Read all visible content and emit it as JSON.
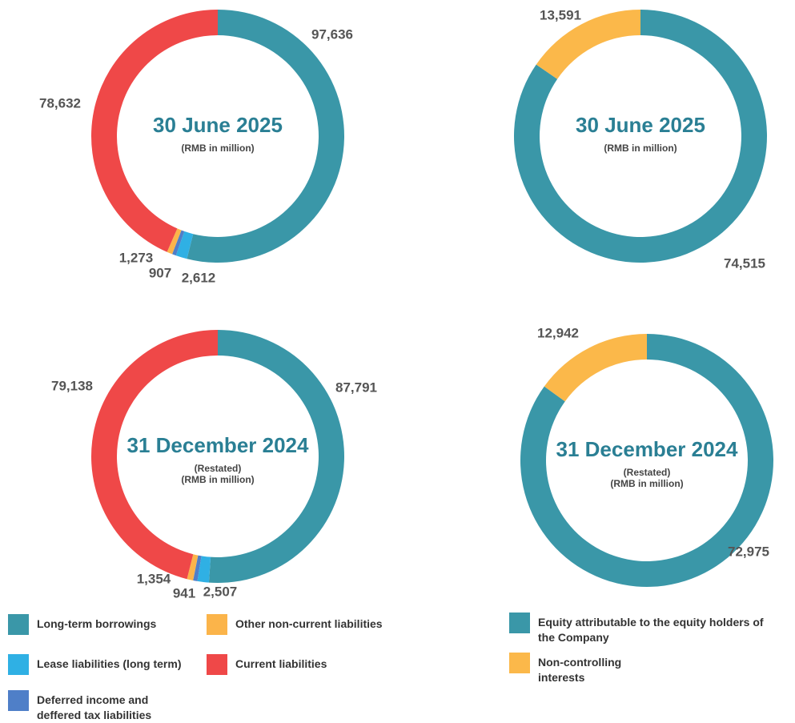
{
  "chart_data": [
    {
      "type": "donut",
      "categories": [
        "Long-term borrowings",
        "Lease liabilities (long term)",
        "Deferred income and deffered tax liabilities",
        "Other non-current liabilities",
        "Current liabilities"
      ],
      "colors": [
        "#3a97a8",
        "#2fb0e4",
        "#4f7fc8",
        "#fbb44a",
        "#ef4848"
      ],
      "unit": "(RMB in million)",
      "series": [
        {
          "name": "30 June 2025",
          "values": [
            97636,
            2612,
            907,
            1273,
            78632
          ],
          "value_labels": [
            "97,636",
            "2,612",
            "907",
            "1,273",
            "78,632"
          ]
        },
        {
          "name": "31 December 2024",
          "note": "(Restated)",
          "values": [
            87791,
            2507,
            941,
            1354,
            79138
          ],
          "value_labels": [
            "87,791",
            "2,507",
            "941",
            "1,354",
            "79,138"
          ]
        }
      ]
    },
    {
      "type": "donut",
      "categories": [
        "Equity attributable to the equity holders of the Company",
        "Non-controlling interests"
      ],
      "colors": [
        "#3a97a8",
        "#fbb84a"
      ],
      "unit": "(RMB in million)",
      "series": [
        {
          "name": "30 June 2025",
          "values": [
            74515,
            13591
          ],
          "value_labels": [
            "74,515",
            "13,591"
          ]
        },
        {
          "name": "31 December 2024",
          "note": "(Restated)",
          "values": [
            72975,
            12942
          ],
          "value_labels": [
            "72,975",
            "12,942"
          ]
        }
      ]
    }
  ]
}
